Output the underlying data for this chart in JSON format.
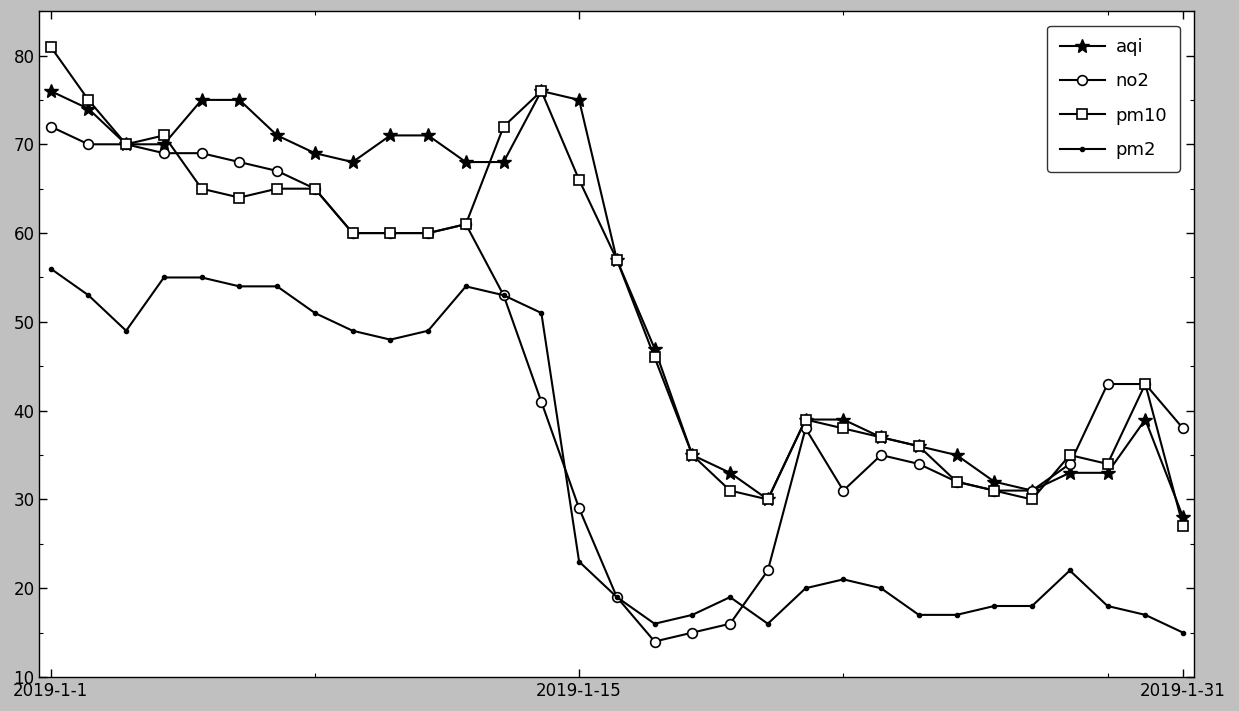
{
  "days": [
    1,
    2,
    3,
    4,
    5,
    6,
    7,
    8,
    9,
    10,
    11,
    12,
    13,
    14,
    15,
    16,
    17,
    18,
    19,
    20,
    21,
    22,
    23,
    24,
    25,
    26,
    27,
    28,
    29,
    30,
    31
  ],
  "aqi": [
    76,
    74,
    70,
    70,
    75,
    75,
    71,
    69,
    68,
    71,
    71,
    68,
    68,
    76,
    75,
    57,
    47,
    35,
    33,
    30,
    39,
    39,
    37,
    36,
    35,
    32,
    31,
    33,
    33,
    39,
    28
  ],
  "no2": [
    72,
    70,
    70,
    69,
    69,
    68,
    67,
    65,
    60,
    60,
    60,
    61,
    53,
    41,
    29,
    19,
    14,
    15,
    16,
    22,
    38,
    31,
    35,
    34,
    32,
    31,
    31,
    34,
    43,
    43,
    38
  ],
  "pm10": [
    81,
    75,
    70,
    71,
    65,
    64,
    65,
    65,
    60,
    60,
    60,
    61,
    72,
    76,
    66,
    57,
    46,
    35,
    31,
    30,
    39,
    38,
    37,
    36,
    32,
    31,
    30,
    35,
    34,
    43,
    27
  ],
  "pm2": [
    56,
    53,
    49,
    55,
    55,
    54,
    54,
    51,
    49,
    48,
    49,
    54,
    53,
    51,
    23,
    19,
    16,
    17,
    19,
    16,
    20,
    21,
    20,
    17,
    17,
    18,
    18,
    22,
    18,
    17,
    15
  ],
  "xtick_positions": [
    1,
    15,
    31
  ],
  "xtick_labels": [
    "2019-1-1",
    "2019-1-15",
    "2019-1-31"
  ],
  "ytick_positions": [
    10,
    20,
    30,
    40,
    50,
    60,
    70,
    80
  ],
  "ylim": [
    10,
    85
  ],
  "xlim": [
    1,
    31
  ],
  "line_color": "#000000",
  "plot_bg_color": "#ffffff",
  "fig_bg_color": "#c0c0c0",
  "legend_entries": [
    "aqi",
    "no2",
    "pm10",
    "pm2"
  ],
  "aqi_marker": "*",
  "no2_marker": "o",
  "pm10_marker": "s",
  "pm2_marker": ".",
  "markersize_star": 10,
  "markersize_circle": 7,
  "markersize_square": 7,
  "markersize_dot": 6,
  "linewidth": 1.5,
  "legend_fontsize": 13,
  "tick_fontsize": 12
}
